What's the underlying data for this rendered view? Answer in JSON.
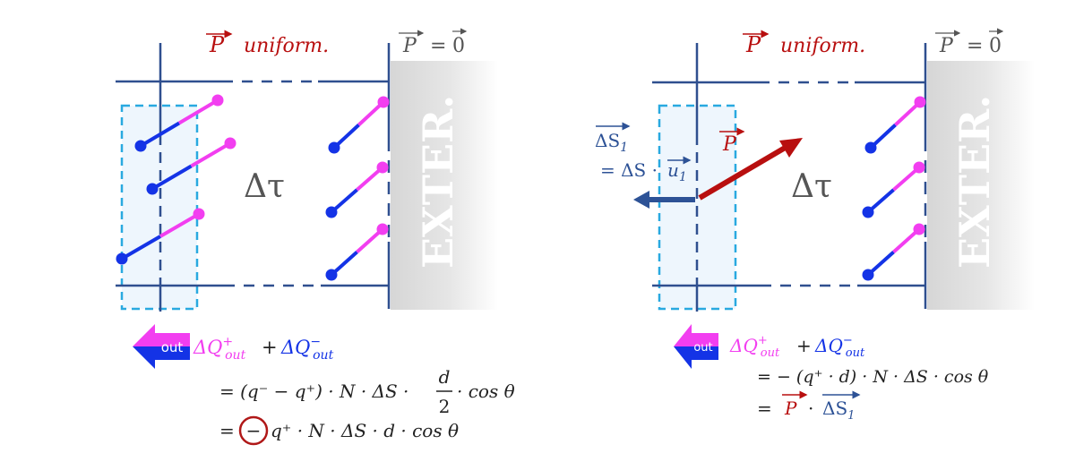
{
  "colors": {
    "frame": "#2f4f8f",
    "box": "#29a9e0",
    "box_fill": "#eef6fd",
    "positive": "#f23ef0",
    "negative": "#1433e6",
    "polarization": "#b80f0f",
    "surface_vector": "#2d5296",
    "exterior": "#d9d9d9",
    "text": "#222222",
    "grey_text": "#555555"
  },
  "left_panel": {
    "p_label": "P",
    "uniform_label": "uniform.",
    "ext_p_label": "P",
    "ext_equals": "=",
    "ext_zero": "0",
    "exterior_label": "EXTER.",
    "volume_label": "Δτ",
    "out_badge": "out",
    "eq_line0": {
      "dq1": "ΔQ",
      "sup1": "+",
      "sub1": "out",
      "plus": "+",
      "dq2": "ΔQ",
      "sup2": "−",
      "sub2": "out"
    },
    "eq_line1": {
      "lhs": "= (q⁻ − q⁺) · N · ΔS ·",
      "num": "d",
      "den": "2",
      "rhs": "· cos θ"
    },
    "eq_line2": {
      "eq": "=",
      "circled": "−",
      "rhs": "q⁺ · N · ΔS · d · cos θ"
    }
  },
  "right_panel": {
    "p_label": "P",
    "uniform_label": "uniform.",
    "ext_p_label": "P",
    "ext_equals": "=",
    "ext_zero": "0",
    "exterior_label": "EXTER.",
    "volume_label": "Δτ",
    "arrow_p_label": "P",
    "ds1_label": "ΔS",
    "ds1_sub": "1",
    "ds1_eq": "= ΔS ·",
    "u1_label": "u",
    "u1_sub": "1",
    "out_badge": "out",
    "eq_line0": {
      "dq1": "ΔQ",
      "sup1": "+",
      "sub1": "out",
      "plus": "+",
      "dq2": "ΔQ",
      "sup2": "−",
      "sub2": "out"
    },
    "eq_line1": "= −  (q⁺ · d) · N · ΔS · cos θ",
    "eq_line2": {
      "eq": "=",
      "p": "P",
      "dot": "·",
      "ds": "ΔS",
      "ds_sub": "1"
    }
  }
}
